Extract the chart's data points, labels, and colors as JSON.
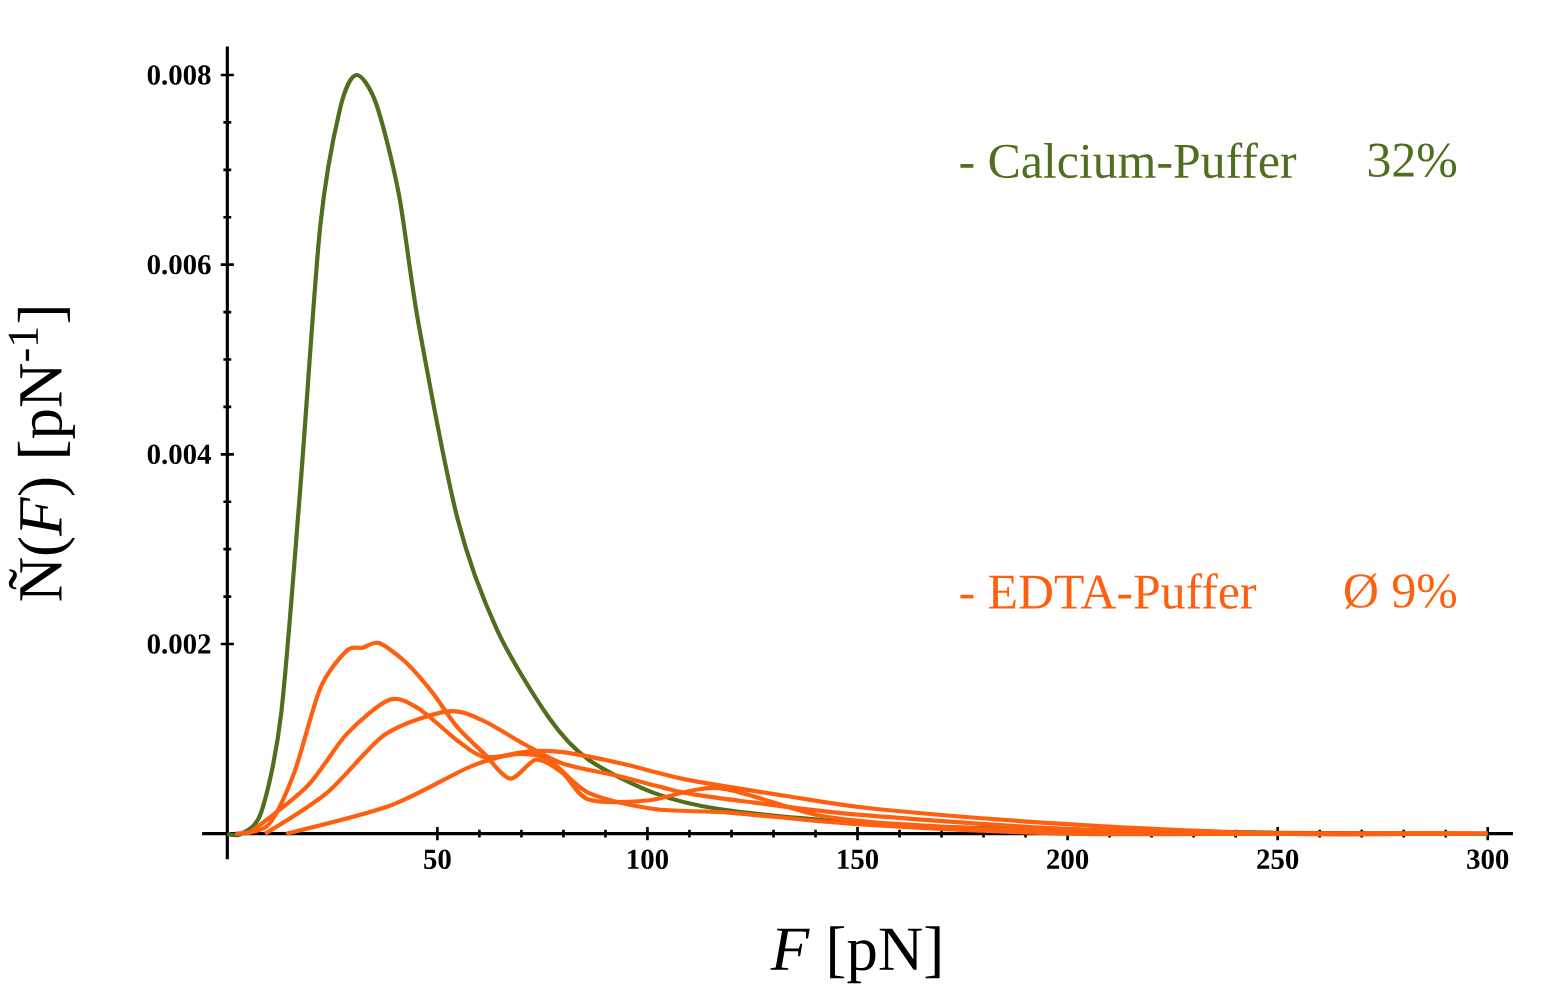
{
  "chart_data": {
    "type": "line",
    "xlabel": "*F* [pN]",
    "ylabel": "Ñ(*F*)  [pN$^{-1}$]",
    "xlim": [
      -6,
      306
    ],
    "ylim": [
      -0.00027,
      0.0083
    ],
    "xticks": [
      50,
      100,
      150,
      200,
      250,
      300
    ],
    "yticks": [
      0.002,
      0.004,
      0.006,
      0.008
    ],
    "grid": false,
    "legend": false,
    "marker": "none",
    "line_style": "solid",
    "annotations": [
      "32%",
      "Ø 9%"
    ],
    "series": [
      {
        "name": "- Calcium-Puffer",
        "color": "#4f6f1e",
        "x": [
          0,
          3.4,
          8.1,
          12.8,
          17.4,
          22.1,
          26.8,
          30.7,
          35.4,
          40.8,
          45.5,
          54.8,
          64.2,
          76.6,
          86,
          101.5,
          117,
          148,
          170,
          200,
          250,
          300
        ],
        "values": [
          0,
          0,
          0.00023,
          0.00126,
          0.00366,
          0.0064,
          0.00764,
          0.008,
          0.0077,
          0.00675,
          0.00538,
          0.00332,
          0.00215,
          0.00122,
          0.00078,
          0.00043,
          0.00026,
          0.00012,
          7e-05,
          4e-05,
          1e-05,
          0
        ]
      },
      {
        "name": "- EDTA-Puffer",
        "color": "#ff6010",
        "x": [
          1.9,
          9.7,
          15.9,
          22.1,
          28.4,
          32.2,
          36.1,
          42.4,
          48.6,
          54.8,
          61,
          67.3,
          73.5,
          79.8,
          86,
          100,
          117,
          140,
          160,
          200,
          250,
          300
        ],
        "values": [
          0,
          9e-05,
          0.00064,
          0.00153,
          0.00193,
          0.00196,
          0.00201,
          0.00181,
          0.0015,
          0.00112,
          0.00085,
          0.00058,
          0.00078,
          0.00064,
          0.00036,
          0.00035,
          0.00048,
          0.0002,
          0.0001,
          2e-05,
          0,
          0
        ]
      },
      {
        "color": "#ff6010",
        "x": [
          5,
          19,
          28.4,
          38.5,
          45.5,
          54.8,
          61,
          70.4,
          76.6,
          86,
          101.5,
          120,
          150,
          200,
          250,
          296
        ],
        "values": [
          0,
          0.0005,
          0.00105,
          0.00141,
          0.00132,
          0.00098,
          0.00081,
          0.00084,
          0.00078,
          0.00043,
          0.00026,
          0.00022,
          0.0001,
          0,
          0,
          0
        ]
      },
      {
        "color": "#ff6010",
        "x": [
          9,
          23.7,
          37.7,
          52.5,
          61,
          70.4,
          79.8,
          93.8,
          109,
          125,
          150,
          200,
          250,
          292
        ],
        "values": [
          0,
          0.00043,
          0.00105,
          0.00129,
          0.00119,
          0.00095,
          0.00074,
          0.0006,
          0.00043,
          0.00033,
          0.0002,
          5e-05,
          0,
          0
        ]
      },
      {
        "color": "#ff6010",
        "x": [
          14,
          39,
          58,
          70.4,
          79.8,
          93.8,
          109.3,
          132.7,
          154.5,
          200,
          250,
          288
        ],
        "values": [
          0,
          0.0003,
          0.00071,
          0.00086,
          0.00086,
          0.00074,
          0.00057,
          0.0004,
          0.00026,
          0.0001,
          0,
          0
        ]
      }
    ]
  }
}
